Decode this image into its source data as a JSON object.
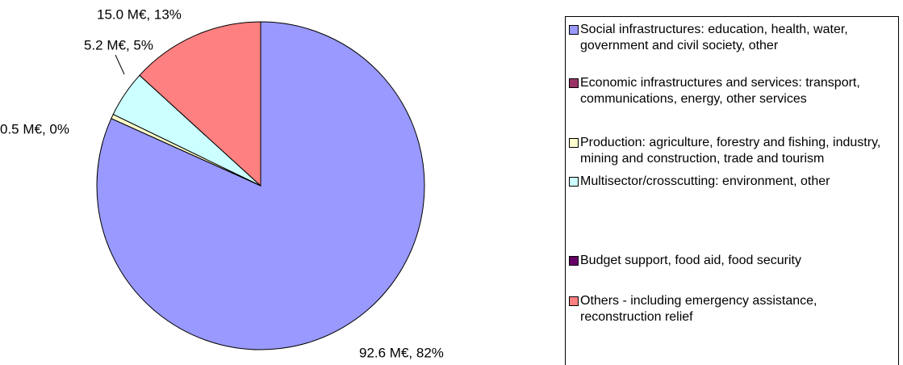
{
  "chart_data": {
    "type": "pie",
    "categories": [
      "Social infrastructures: education, health, water, government and civil society, other",
      "Economic infrastructures and services: transport, communications, energy, other services",
      "Production: agriculture, forestry and fishing, industry, mining and construction, trade and tourism",
      "Multisector/crosscutting: environment, other",
      "Budget support, food aid, food security",
      "Others - including emergency assistance, reconstruction relief"
    ],
    "values": [
      92.6,
      0,
      0.5,
      5.2,
      0,
      15.0
    ],
    "value_labels": [
      "92.6 M€, 82%",
      null,
      "0.5 M€, 0%",
      "5.2 M€, 5%",
      null,
      "15.0 M€, 13%"
    ],
    "colors": [
      "#9999ff",
      "#993366",
      "#ffffcc",
      "#ccffff",
      "#660066",
      "#ff8080"
    ]
  }
}
